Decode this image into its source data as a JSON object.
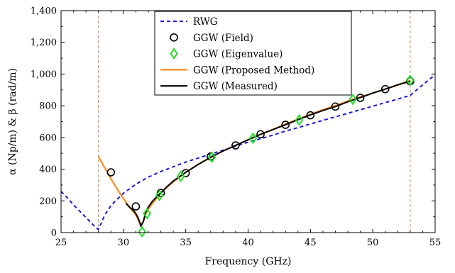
{
  "chart_data": {
    "type": "line",
    "title": "",
    "xlabel": "Frequency (GHz)",
    "ylabel": "α (Np/m) & β (rad/m)",
    "xlim": [
      25,
      55
    ],
    "ylim": [
      0,
      1400
    ],
    "xticks": [
      25,
      30,
      35,
      40,
      45,
      50,
      55
    ],
    "xtick_labels": [
      "25",
      "30",
      "35",
      "40",
      "45",
      "50",
      "55"
    ],
    "yticks": [
      0,
      200,
      400,
      600,
      800,
      1000,
      1200,
      1400
    ],
    "ytick_labels": [
      "0",
      "200",
      "400",
      "600",
      "800",
      "1,000",
      "1,200",
      "1,400"
    ],
    "grid": false,
    "legend_position": "top-center",
    "vlines": [
      28,
      53
    ],
    "series": [
      {
        "name": "RWG",
        "style": "dashed-line",
        "color": "#1a1adb",
        "x": [
          25,
          25.5,
          26,
          26.5,
          27,
          27.5,
          27.8,
          28.0,
          28.2,
          28.5,
          29,
          29.5,
          30,
          31,
          32,
          33,
          34,
          35,
          36,
          37,
          38,
          39,
          40,
          41,
          42,
          43,
          44,
          45,
          46,
          47,
          48,
          49,
          50,
          51,
          52,
          53,
          54,
          55
        ],
        "y": [
          260,
          220,
          175,
          135,
          95,
          55,
          30,
          20,
          55,
          110,
          170,
          210,
          248,
          305,
          350,
          385,
          415,
          445,
          470,
          495,
          520,
          545,
          570,
          592,
          615,
          640,
          662,
          685,
          708,
          730,
          752,
          775,
          797,
          820,
          842,
          865,
          932,
          995
        ]
      },
      {
        "name": "GGW (Field)",
        "style": "circle-markers",
        "color": "#000000",
        "x": [
          29,
          31,
          33,
          35,
          37,
          39,
          41,
          43,
          45,
          47,
          49,
          51,
          53
        ],
        "y": [
          380,
          165,
          250,
          375,
          480,
          550,
          620,
          680,
          740,
          795,
          850,
          905,
          955
        ]
      },
      {
        "name": "GGW (Eigenvalue)",
        "style": "diamond-markers",
        "color": "#22dd22",
        "x": [
          31.5,
          31.9,
          32.9,
          34.6,
          37.1,
          40.4,
          44.1,
          48.4,
          53
        ],
        "y": [
          5,
          120,
          235,
          355,
          475,
          595,
          710,
          840,
          960
        ]
      },
      {
        "name": "GGW (Proposed Method)",
        "style": "solid-line",
        "color": "#ff8c1a",
        "x": [
          28,
          28.5,
          29,
          29.5,
          30,
          30.5,
          31,
          31.2,
          31.4,
          31.6,
          31.8,
          32,
          32.5,
          33,
          34,
          35,
          36,
          37,
          38,
          39,
          40,
          41,
          42,
          43,
          44,
          45,
          46,
          47,
          48,
          49,
          50,
          51,
          52,
          53
        ],
        "y": [
          480,
          410,
          340,
          275,
          215,
          160,
          110,
          80,
          50,
          70,
          120,
          150,
          200,
          250,
          320,
          380,
          430,
          475,
          515,
          550,
          585,
          620,
          650,
          685,
          715,
          745,
          775,
          800,
          830,
          855,
          880,
          905,
          930,
          960
        ]
      },
      {
        "name": "GGW (Measured)",
        "style": "solid-line",
        "color": "#000000",
        "x": [
          30.2,
          30.5,
          30.8,
          31.0,
          31.2,
          31.4,
          31.6,
          31.8,
          32.0,
          32.3,
          32.6,
          33,
          33.5,
          34,
          35,
          36,
          37,
          38,
          39,
          40,
          41,
          42,
          43,
          44,
          45,
          46,
          47,
          48,
          49,
          50,
          51,
          52,
          53
        ],
        "y": [
          185,
          160,
          140,
          120,
          90,
          40,
          70,
          130,
          160,
          195,
          220,
          250,
          290,
          325,
          380,
          430,
          475,
          515,
          550,
          585,
          620,
          650,
          680,
          712,
          742,
          770,
          795,
          825,
          852,
          880,
          905,
          932,
          955
        ]
      }
    ]
  }
}
